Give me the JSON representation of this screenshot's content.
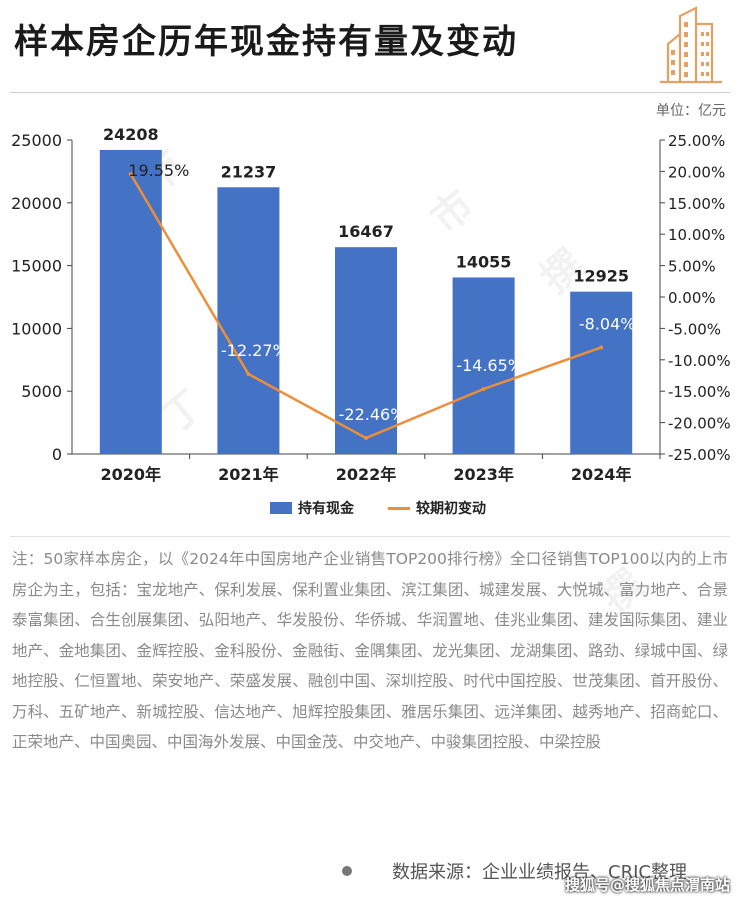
{
  "title": "样本房企历年现金持有量及变动",
  "unit": "单位：亿元",
  "chart_data": {
    "type": "bar",
    "categories": [
      "2020年",
      "2021年",
      "2022年",
      "2023年",
      "2024年"
    ],
    "series": [
      {
        "name": "持有现金",
        "type": "bar",
        "axis": "left",
        "values": [
          24208,
          21237,
          16467,
          14055,
          12925
        ],
        "color": "#4472c4"
      },
      {
        "name": "较期初变动",
        "type": "line",
        "axis": "right",
        "values": [
          19.55,
          -12.27,
          -22.46,
          -14.65,
          -8.04
        ],
        "color": "#ed8e3a"
      }
    ],
    "bar_labels": [
      "24208",
      "21237",
      "16467",
      "14055",
      "12925"
    ],
    "line_labels": [
      "19.55%",
      "-12.27%",
      "-22.46%",
      "-14.65%",
      "-8.04%"
    ],
    "ylim": [
      0,
      25000
    ],
    "y_ticks": [
      "0",
      "5000",
      "10000",
      "15000",
      "20000",
      "25000"
    ],
    "y2lim": [
      -25,
      25
    ],
    "y2_ticks": [
      "-25.00%",
      "-20.00%",
      "-15.00%",
      "-10.00%",
      "-5.00%",
      "0.00%",
      "5.00%",
      "10.00%",
      "15.00%",
      "20.00%",
      "25.00%"
    ],
    "legend_position": "bottom",
    "grid": false
  },
  "legend": {
    "bar": "持有现金",
    "line": "较期初变动"
  },
  "note": "注：50家样本房企，以《2024年中国房地产企业销售TOP200排行榜》全口径销售TOP100以内的上市房企为主，包括：宝龙地产、保利发展、保利置业集团、滨江集团、城建发展、大悦城、富力地产、合景泰富集团、合生创展集团、弘阳地产、华发股份、华侨城、华润置地、佳兆业集团、建发国际集团、建业地产、金地集团、金辉控股、金科股份、金融街、金隅集团、龙光集团、龙湖集团、路劲、绿城中国、绿地控股、仁恒置地、荣安地产、荣盛发展、融创中国、深圳控股、时代中国控股、世茂集团、首开股份、万科、五矿地产、新城控股、信达地产、旭辉控股集团、雅居乐集团、远洋集团、越秀地产、招商蛇口、正荣地产、中国奥园、中国海外发展、中国金茂、中交地产、中骏集团控股、中梁控股",
  "source": "数据来源：企业业绩报告、CRIC整理",
  "watermark_tag": "搜狐号@搜狐焦点渭南站",
  "colors": {
    "bar": "#4472c4",
    "line": "#ed8e3a",
    "logo": "#e8a062"
  }
}
